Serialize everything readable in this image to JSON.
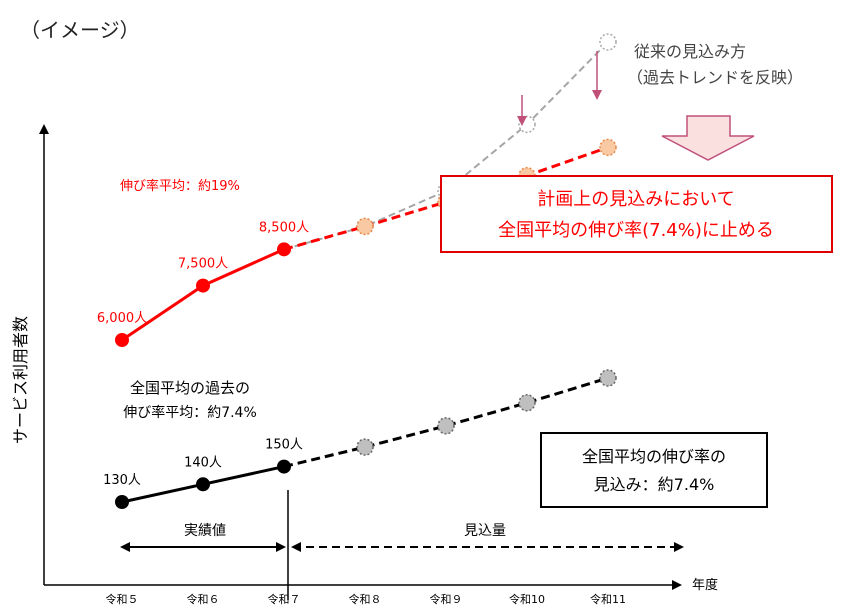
{
  "header": {
    "caption": "（イメージ）"
  },
  "chart_data": {
    "type": "line",
    "ylabel": "サービス利用者数",
    "xlabel_end": "年度",
    "categories": [
      "令和５",
      "令和６",
      "令和７",
      "令和８",
      "令和９",
      "令和10",
      "令和11"
    ],
    "series": [
      {
        "id": "local_actual",
        "color": "#ff0000",
        "x": [
          "令和５",
          "令和６",
          "令和７"
        ],
        "values": [
          6000,
          7500,
          8500
        ],
        "labels": [
          "6,000人",
          "7,500人",
          "8,500人"
        ],
        "line_style": "solid",
        "marker": "filled"
      },
      {
        "id": "local_planned",
        "color": "#ff0000",
        "x": [
          "令和７",
          "令和８",
          "令和９",
          "令和10",
          "令和11"
        ],
        "values": [
          8500,
          9132,
          9807,
          10532,
          11312
        ],
        "line_style": "dashed",
        "marker": "orange-dashed"
      },
      {
        "id": "local_trend",
        "color": "#a6a6a6",
        "x": [
          "令和８",
          "令和９",
          "令和10",
          "令和11"
        ],
        "values": [
          9132,
          10109,
          11945,
          14218
        ],
        "line_style": "dashed",
        "marker": "white-dashed"
      },
      {
        "id": "national_actual",
        "color": "#000000",
        "x": [
          "令和５",
          "令和６",
          "令和７"
        ],
        "values": [
          130,
          140,
          150
        ],
        "labels": [
          "130人",
          "140人",
          "150人"
        ],
        "line_style": "solid",
        "marker": "filled"
      },
      {
        "id": "national_projection",
        "color": "#000000",
        "x": [
          "令和７",
          "令和８",
          "令和９",
          "令和10",
          "令和11"
        ],
        "values": [
          150,
          161,
          173,
          186,
          200
        ],
        "line_style": "dashed",
        "marker": "gray-dashed"
      }
    ],
    "annotations": {
      "local_growth": "伸び率平均：約19%",
      "trend_label_line1": "従来の見込み方",
      "trend_label_line2": "（過去トレンドを反映）",
      "plan_box_line1": "計画上の見込みにおいて",
      "plan_box_line2": "全国平均の伸び率(7.4%)に止める",
      "national_past_line1": "全国平均の過去の",
      "national_past_line2": "伸び率平均：約7.4%",
      "national_box_line1": "全国平均の伸び率の",
      "national_box_line2": "見込み：約7.4%",
      "actual_span": "実績値",
      "projection_span": "見込量"
    },
    "colors": {
      "red": "#ff0000",
      "orange_fill": "#f8c9a3",
      "gray_fill": "#bfbfbf"
    }
  }
}
